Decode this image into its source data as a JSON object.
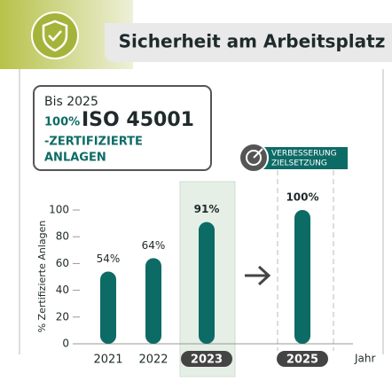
{
  "header": {
    "title": "Sicherheit am Arbeitsplatz"
  },
  "target": {
    "intro": "Bis 2025",
    "percent": "100%",
    "standard": "ISO 45001",
    "line1": "-ZERTIFIZIERTE",
    "line2": "ANLAGEN"
  },
  "badge": [
    "VERBESSERUNG",
    "ZIELSETZUNG"
  ],
  "chart_data": {
    "type": "bar",
    "categories": [
      "2021",
      "2022",
      "2023",
      "2025"
    ],
    "values": [
      54,
      64,
      91,
      100
    ],
    "value_labels": [
      "54%",
      "64%",
      "91%",
      "100%"
    ],
    "color": "#0d6b66",
    "ylim": [
      0,
      100
    ],
    "yticks": [
      0,
      20,
      40,
      60,
      80,
      100
    ],
    "ylabel": "% Zertifizierte Anlagen",
    "xlabel": "Jahr"
  }
}
